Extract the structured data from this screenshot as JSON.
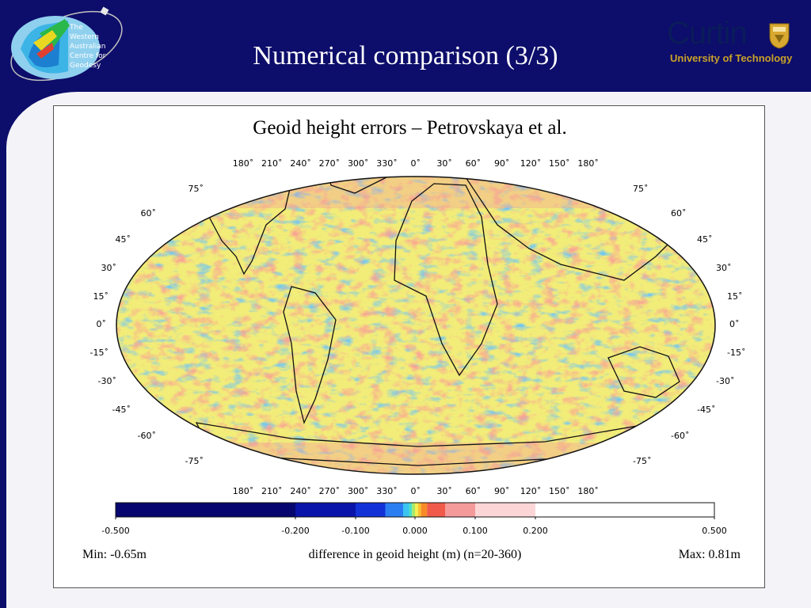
{
  "slide": {
    "title": "Numerical comparison (3/3)",
    "background_color": "#0d0d6b",
    "panel_color": "#f4f4f8"
  },
  "logos": {
    "wacg": {
      "lines": [
        "The",
        "Western",
        "Australian",
        "Centre for",
        "Geodesy"
      ],
      "icon": "satellite-orbit-logo-icon"
    },
    "curtin": {
      "name": "Curtin",
      "subtitle": "University of Technology",
      "icon": "curtin-crest-icon",
      "name_color": "#0a1c5a",
      "subtitle_color": "#c9a227"
    }
  },
  "figure": {
    "title": "Geoid height errors – Petrovskaya et al.",
    "projection": "robinson-like",
    "longitude_labels": [
      "180˚",
      "210˚",
      "240˚",
      "270˚",
      "300˚",
      "330˚",
      "0˚",
      "30˚",
      "60˚",
      "90˚",
      "120˚",
      "150˚",
      "180˚"
    ],
    "latitude_labels_left": [
      "75˚",
      "60˚",
      "45˚",
      "30˚",
      "15˚",
      "0˚",
      "-15˚",
      "-30˚",
      "-45˚",
      "-60˚",
      "-75˚"
    ],
    "latitude_labels_right": [
      "75˚",
      "60˚",
      "45˚",
      "30˚",
      "15˚",
      "0˚",
      "-15˚",
      "-30˚",
      "-45˚",
      "-60˚",
      "-75˚"
    ],
    "colorbar": {
      "min": -0.5,
      "max": 0.5,
      "tick_labels": [
        {
          "value": -0.5,
          "label": "-0.500"
        },
        {
          "value": -0.2,
          "label": "-0.200"
        },
        {
          "value": -0.1,
          "label": "-0.100"
        },
        {
          "value": 0.0,
          "label": "0.000"
        },
        {
          "value": 0.1,
          "label": "0.100"
        },
        {
          "value": 0.2,
          "label": "0.200"
        },
        {
          "value": 0.5,
          "label": "0.500"
        }
      ],
      "bins": [
        {
          "from": -0.5,
          "to": -0.2,
          "color": "#06066e"
        },
        {
          "from": -0.2,
          "to": -0.1,
          "color": "#0a14a8"
        },
        {
          "from": -0.1,
          "to": -0.05,
          "color": "#1232d8"
        },
        {
          "from": -0.05,
          "to": -0.02,
          "color": "#2a7ef2"
        },
        {
          "from": -0.02,
          "to": -0.01,
          "color": "#3cc4f0"
        },
        {
          "from": -0.01,
          "to": -0.005,
          "color": "#4ce0c8"
        },
        {
          "from": -0.005,
          "to": 0.0,
          "color": "#a8e868"
        },
        {
          "from": 0.0,
          "to": 0.005,
          "color": "#f4f050"
        },
        {
          "from": 0.005,
          "to": 0.01,
          "color": "#f8c030"
        },
        {
          "from": 0.01,
          "to": 0.02,
          "color": "#f88a28"
        },
        {
          "from": 0.02,
          "to": 0.05,
          "color": "#f05a4a"
        },
        {
          "from": 0.05,
          "to": 0.1,
          "color": "#f49a9a"
        },
        {
          "from": 0.1,
          "to": 0.2,
          "color": "#fcd6d6"
        },
        {
          "from": 0.2,
          "to": 0.5,
          "color": "#ffffff"
        }
      ]
    },
    "min_label": "Min: -0.65m",
    "caption": "difference in geoid height (m) (n=20-360)",
    "max_label": "Max: 0.81m"
  }
}
